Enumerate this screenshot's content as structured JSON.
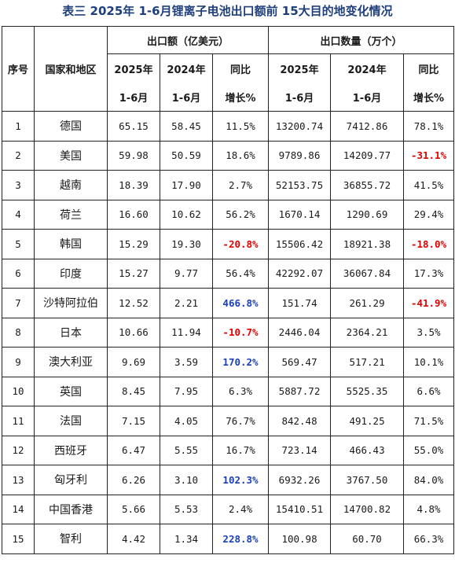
{
  "title": "表三  2025年 1-6月锂离子电池出口额前 15大目的地变化情况",
  "headers": {
    "index": "序号",
    "region": "国家和地区",
    "amount_group": "出口额（亿美元）",
    "qty_group": "出口数量（万个）",
    "y2025_top": "2025年",
    "y2024_top": "2024年",
    "period": "1-6月",
    "yoy_top": "同比",
    "yoy_bottom": "增长%"
  },
  "colors": {
    "negative": "#e00000",
    "positive_highlight": "#1a3fb8",
    "title": "#1f3f7a"
  },
  "rows": [
    {
      "idx": "1",
      "name": "德国",
      "a25": "65.15",
      "a24": "58.45",
      "ay": "11.5%",
      "ay_style": "plain",
      "q25": "13200.74",
      "q24": "7412.86",
      "qy": "78.1%",
      "qy_style": "plain"
    },
    {
      "idx": "2",
      "name": "美国",
      "a25": "59.98",
      "a24": "50.59",
      "ay": "18.6%",
      "ay_style": "plain",
      "q25": "9789.86",
      "q24": "14209.77",
      "qy": "-31.1%",
      "qy_style": "neg"
    },
    {
      "idx": "3",
      "name": "越南",
      "a25": "18.39",
      "a24": "17.90",
      "ay": "2.7%",
      "ay_style": "plain",
      "q25": "52153.75",
      "q24": "36855.72",
      "qy": "41.5%",
      "qy_style": "plain"
    },
    {
      "idx": "4",
      "name": "荷兰",
      "a25": "16.60",
      "a24": "10.62",
      "ay": "56.2%",
      "ay_style": "plain",
      "q25": "1670.14",
      "q24": "1290.69",
      "qy": "29.4%",
      "qy_style": "plain"
    },
    {
      "idx": "5",
      "name": "韩国",
      "a25": "15.29",
      "a24": "19.30",
      "ay": "-20.8%",
      "ay_style": "neg",
      "q25": "15506.42",
      "q24": "18921.38",
      "qy": "-18.0%",
      "qy_style": "neg"
    },
    {
      "idx": "6",
      "name": "印度",
      "a25": "15.27",
      "a24": "9.77",
      "ay": "56.4%",
      "ay_style": "plain",
      "q25": "42292.07",
      "q24": "36067.84",
      "qy": "17.3%",
      "qy_style": "plain"
    },
    {
      "idx": "7",
      "name": "沙特阿拉伯",
      "a25": "12.52",
      "a24": "2.21",
      "ay": "466.8%",
      "ay_style": "pos",
      "q25": "151.74",
      "q24": "261.29",
      "qy": "-41.9%",
      "qy_style": "neg"
    },
    {
      "idx": "8",
      "name": "日本",
      "a25": "10.66",
      "a24": "11.94",
      "ay": "-10.7%",
      "ay_style": "neg",
      "q25": "2446.04",
      "q24": "2364.21",
      "qy": "3.5%",
      "qy_style": "plain"
    },
    {
      "idx": "9",
      "name": "澳大利亚",
      "a25": "9.69",
      "a24": "3.59",
      "ay": "170.2%",
      "ay_style": "pos",
      "q25": "569.47",
      "q24": "517.21",
      "qy": "10.1%",
      "qy_style": "plain"
    },
    {
      "idx": "10",
      "name": "英国",
      "a25": "8.45",
      "a24": "7.95",
      "ay": "6.3%",
      "ay_style": "plain",
      "q25": "5887.72",
      "q24": "5525.35",
      "qy": "6.6%",
      "qy_style": "plain"
    },
    {
      "idx": "11",
      "name": "法国",
      "a25": "7.15",
      "a24": "4.05",
      "ay": "76.7%",
      "ay_style": "plain",
      "q25": "842.48",
      "q24": "491.25",
      "qy": "71.5%",
      "qy_style": "plain"
    },
    {
      "idx": "12",
      "name": "西班牙",
      "a25": "6.47",
      "a24": "5.55",
      "ay": "16.7%",
      "ay_style": "plain",
      "q25": "723.14",
      "q24": "466.43",
      "qy": "55.0%",
      "qy_style": "plain"
    },
    {
      "idx": "13",
      "name": "匈牙利",
      "a25": "6.26",
      "a24": "3.10",
      "ay": "102.3%",
      "ay_style": "pos",
      "q25": "6932.26",
      "q24": "3767.50",
      "qy": "84.0%",
      "qy_style": "plain"
    },
    {
      "idx": "14",
      "name": "中国香港",
      "a25": "5.66",
      "a24": "5.53",
      "ay": "2.4%",
      "ay_style": "plain",
      "q25": "15410.51",
      "q24": "14700.82",
      "qy": "4.8%",
      "qy_style": "plain"
    },
    {
      "idx": "15",
      "name": "智利",
      "a25": "4.42",
      "a24": "1.34",
      "ay": "228.8%",
      "ay_style": "pos",
      "q25": "100.98",
      "q24": "60.70",
      "qy": "66.3%",
      "qy_style": "plain"
    }
  ]
}
